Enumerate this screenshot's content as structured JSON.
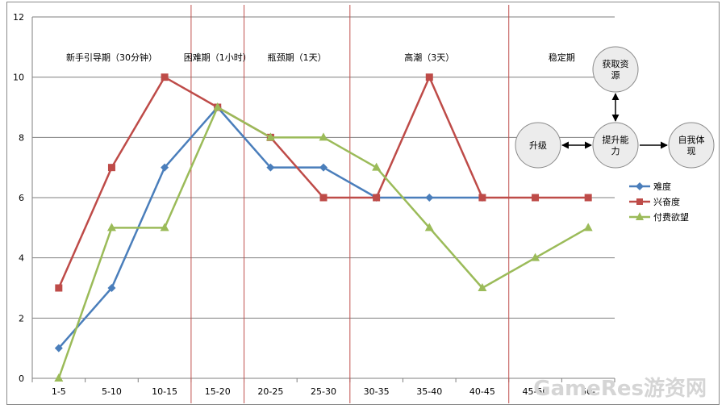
{
  "chart_data": {
    "type": "line",
    "categories": [
      "1-5",
      "5-10",
      "10-15",
      "15-20",
      "20-25",
      "25-30",
      "30-35",
      "35-40",
      "40-45",
      "45-50",
      "50-"
    ],
    "ylim": [
      0,
      12
    ],
    "yticks": [
      0,
      2,
      4,
      6,
      8,
      10,
      12
    ],
    "grid": true,
    "legend_position": "right",
    "series": [
      {
        "name": "难度",
        "color": "#4a7ebb",
        "marker": "diamond",
        "values": [
          1,
          3,
          7,
          9,
          7,
          7,
          6,
          6,
          6,
          null,
          null
        ]
      },
      {
        "name": "兴奋度",
        "color": "#be4b48",
        "marker": "square",
        "values": [
          3,
          7,
          10,
          9,
          8,
          6,
          6,
          10,
          6,
          6,
          6
        ]
      },
      {
        "name": "付费欲望",
        "color": "#9bbb59",
        "marker": "triangle",
        "values": [
          0,
          5,
          5,
          9,
          8,
          8,
          7,
          5,
          3,
          4,
          5
        ]
      }
    ],
    "phase_boundaries_after_category": [
      "10-15",
      "15-20",
      "25-30",
      "40-45"
    ],
    "phases": [
      {
        "label": "新手引导期（30分钟）",
        "categories": [
          "1-5",
          "10-15"
        ]
      },
      {
        "label": "困难期（1小时）",
        "categories": [
          "15-20",
          "15-20"
        ]
      },
      {
        "label": "瓶颈期（1天）",
        "categories": [
          "20-25",
          "25-30"
        ]
      },
      {
        "label": "高潮（3天）",
        "categories": [
          "30-35",
          "40-45"
        ]
      },
      {
        "label": "稳定期",
        "categories": [
          "45-50",
          "50-"
        ]
      }
    ],
    "cycle_diagram": {
      "nodes": [
        {
          "id": "level-up",
          "label_lines": [
            "升级"
          ]
        },
        {
          "id": "improve",
          "label_lines": [
            "提升能",
            "力"
          ]
        },
        {
          "id": "acquire",
          "label_lines": [
            "获取资",
            "源"
          ]
        },
        {
          "id": "express",
          "label_lines": [
            "自我体",
            "现"
          ]
        }
      ],
      "edges": [
        {
          "from": "level-up",
          "to": "improve",
          "both_ways": true
        },
        {
          "from": "improve",
          "to": "acquire",
          "both_ways": true
        },
        {
          "from": "improve",
          "to": "express",
          "both_ways": false
        }
      ]
    }
  },
  "watermark": "GameRes游资网"
}
